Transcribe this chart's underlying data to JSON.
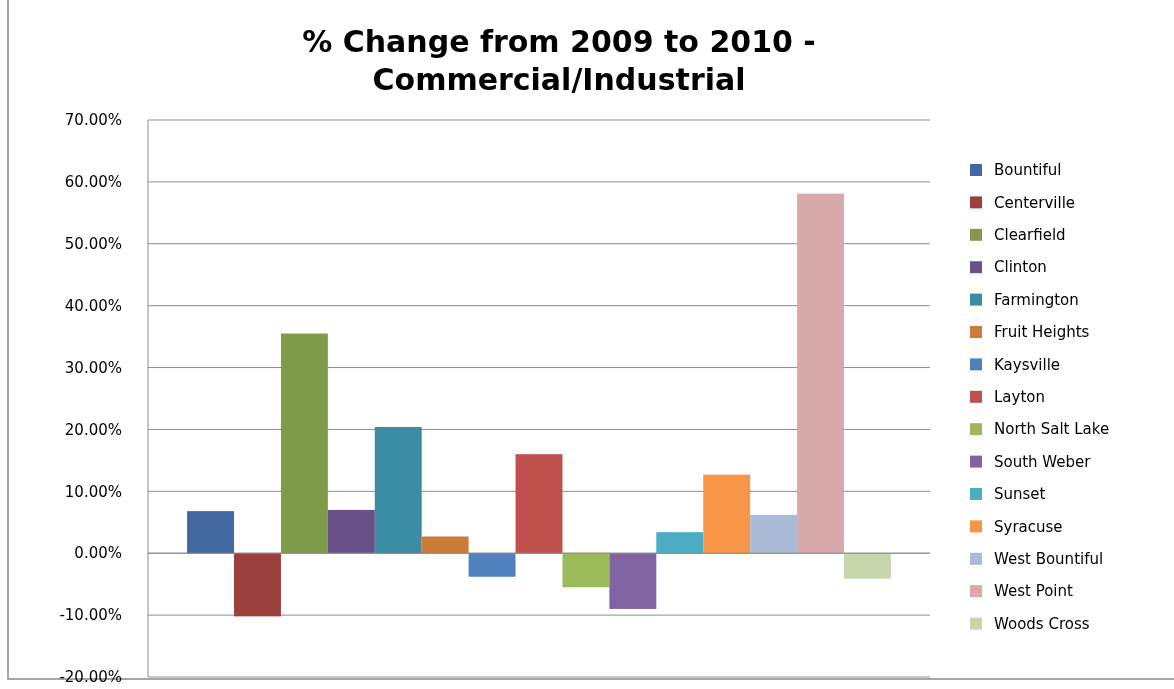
{
  "chart_data": {
    "type": "bar",
    "title": "% Change from 2009 to 2010 - Commercial/Industrial",
    "categories": [
      null
    ],
    "series": [
      {
        "name": "Bountiful",
        "color": "#4168a0",
        "values": [
          6.8
        ]
      },
      {
        "name": "Centerville",
        "color": "#9c403e",
        "values": [
          -10.2
        ]
      },
      {
        "name": "Clearfield",
        "color": "#7f9a48",
        "values": [
          35.5
        ]
      },
      {
        "name": "Clinton",
        "color": "#695187",
        "values": [
          7.0
        ]
      },
      {
        "name": "Farmington",
        "color": "#3c8da3",
        "values": [
          20.4
        ]
      },
      {
        "name": "Fruit Heights",
        "color": "#cc7b38",
        "values": [
          2.7
        ]
      },
      {
        "name": "Kaysville",
        "color": "#4f81bd",
        "values": [
          -3.8
        ]
      },
      {
        "name": "Layton",
        "color": "#c0504d",
        "values": [
          16.0
        ]
      },
      {
        "name": "North Salt Lake",
        "color": "#9bbb59",
        "values": [
          -5.5
        ]
      },
      {
        "name": "South Weber",
        "color": "#8064a2",
        "values": [
          -9.0
        ]
      },
      {
        "name": "Sunset",
        "color": "#4bacc6",
        "values": [
          3.4
        ]
      },
      {
        "name": "Syracuse",
        "color": "#f79646",
        "values": [
          12.7
        ]
      },
      {
        "name": "West Bountiful",
        "color": "#aabad7",
        "values": [
          6.2
        ]
      },
      {
        "name": "West Point",
        "color": "#d9a9a9",
        "values": [
          58.1
        ]
      },
      {
        "name": "Woods Cross",
        "color": "#c7d6ab",
        "values": [
          -4.1
        ]
      }
    ],
    "ylim": [
      -20,
      70
    ],
    "yticks": [
      {
        "value": -20,
        "label": "-20.00%"
      },
      {
        "value": -10,
        "label": "-10.00%"
      },
      {
        "value": 0,
        "label": "0.00%"
      },
      {
        "value": 10,
        "label": "10.00%"
      },
      {
        "value": 20,
        "label": "20.00%"
      },
      {
        "value": 30,
        "label": "30.00%"
      },
      {
        "value": 40,
        "label": "40.00%"
      },
      {
        "value": 50,
        "label": "50.00%"
      },
      {
        "value": 60,
        "label": "60.00%"
      },
      {
        "value": 70,
        "label": "70.00%"
      }
    ],
    "grid": "y",
    "legend": "right"
  }
}
